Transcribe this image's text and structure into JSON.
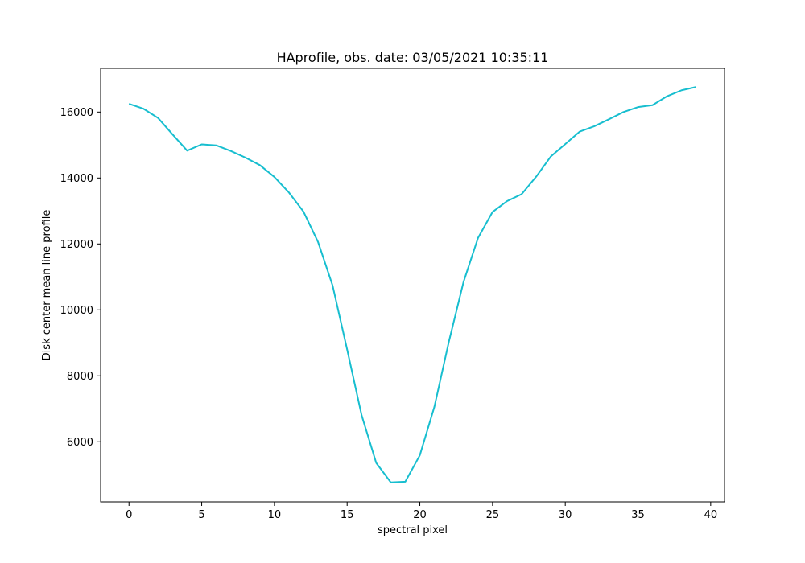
{
  "chart_data": {
    "type": "line",
    "title": "HAprofile, obs. date: 03/05/2021 10:35:11",
    "xlabel": "spectral pixel",
    "ylabel": "Disk center mean line profile",
    "xlim": [
      -1.95,
      40.95
    ],
    "ylim": [
      4177,
      17325
    ],
    "xticks": [
      0,
      5,
      10,
      15,
      20,
      25,
      30,
      35,
      40
    ],
    "yticks": [
      6000,
      8000,
      10000,
      12000,
      14000,
      16000
    ],
    "grid": false,
    "legend": "none",
    "series": [
      {
        "color": "#17becf",
        "x": [
          0,
          1,
          2,
          3,
          4,
          5,
          6,
          7,
          8,
          9,
          10,
          11,
          12,
          13,
          14,
          15,
          16,
          17,
          18,
          19,
          20,
          21,
          22,
          23,
          24,
          25,
          26,
          27,
          28,
          29,
          30,
          31,
          32,
          33,
          34,
          35,
          36,
          37,
          38,
          39
        ],
        "y": [
          16250,
          16100,
          15820,
          15320,
          14830,
          15020,
          14990,
          14820,
          14620,
          14390,
          14030,
          13560,
          12980,
          12060,
          10740,
          8800,
          6800,
          5360,
          4770,
          4790,
          5590,
          7060,
          9040,
          10840,
          12180,
          12970,
          13300,
          13510,
          14040,
          14650,
          15030,
          15410,
          15570,
          15780,
          16000,
          16150,
          16210,
          16480,
          16660,
          16760
        ]
      }
    ]
  }
}
